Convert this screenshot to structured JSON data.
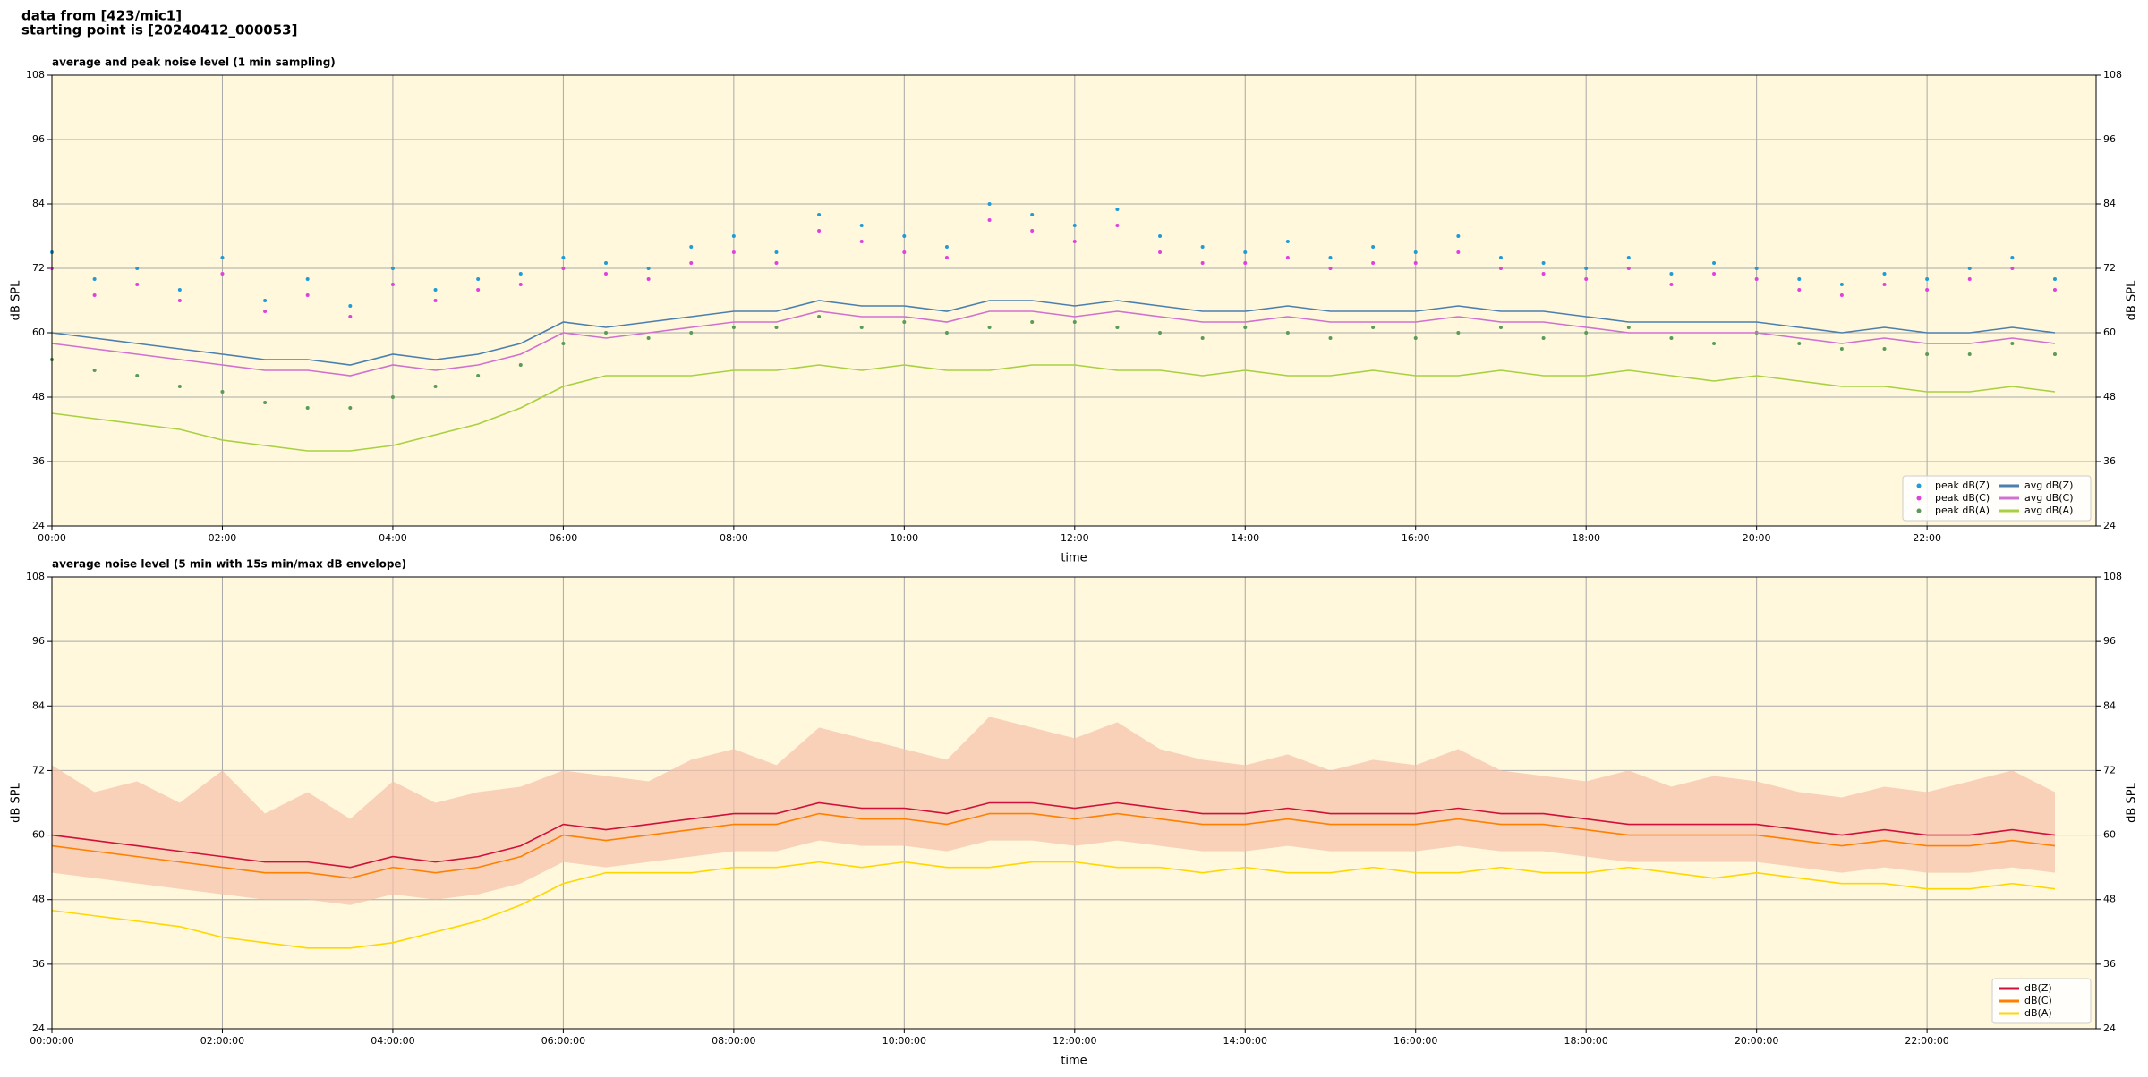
{
  "header": {
    "line1": "data from [423/mic1]",
    "line2": "starting point is [20240412_000053]"
  },
  "chart_data": [
    {
      "type": "line",
      "title": "average and peak noise level (1 min sampling)",
      "xlabel": "time",
      "ylabel": "dB SPL",
      "x": [
        "00:00",
        "00:30",
        "01:00",
        "01:30",
        "02:00",
        "02:30",
        "03:00",
        "03:30",
        "04:00",
        "04:30",
        "05:00",
        "05:30",
        "06:00",
        "06:30",
        "07:00",
        "07:30",
        "08:00",
        "08:30",
        "09:00",
        "09:30",
        "10:00",
        "10:30",
        "11:00",
        "11:30",
        "12:00",
        "12:30",
        "13:00",
        "13:30",
        "14:00",
        "14:30",
        "15:00",
        "15:30",
        "16:00",
        "16:30",
        "17:00",
        "17:30",
        "18:00",
        "18:30",
        "19:00",
        "19:30",
        "20:00",
        "20:30",
        "21:00",
        "21:30",
        "22:00",
        "22:30",
        "23:00",
        "23:30"
      ],
      "xlim": [
        "00:00",
        "23:59"
      ],
      "xticks": [
        "00:00",
        "02:00",
        "04:00",
        "06:00",
        "08:00",
        "10:00",
        "12:00",
        "14:00",
        "16:00",
        "18:00",
        "20:00",
        "22:00"
      ],
      "ylim": [
        24,
        108
      ],
      "yticks": [
        24,
        36,
        48,
        60,
        72,
        84,
        96,
        108
      ],
      "grid": true,
      "legend": "lower right",
      "legend_columns": 2,
      "background": "#fff8dc",
      "series": [
        {
          "name": "peak dB(Z)",
          "style": "scatter",
          "color": "#1f9bd8",
          "values": [
            75,
            70,
            72,
            68,
            74,
            66,
            70,
            65,
            72,
            68,
            70,
            71,
            74,
            73,
            72,
            76,
            78,
            75,
            82,
            80,
            78,
            76,
            84,
            82,
            80,
            83,
            78,
            76,
            75,
            77,
            74,
            76,
            75,
            78,
            74,
            73,
            72,
            74,
            71,
            73,
            72,
            70,
            69,
            71,
            70,
            72,
            74,
            70
          ]
        },
        {
          "name": "peak dB(C)",
          "style": "scatter",
          "color": "#e040e0",
          "values": [
            72,
            67,
            69,
            66,
            71,
            64,
            67,
            63,
            69,
            66,
            68,
            69,
            72,
            71,
            70,
            73,
            75,
            73,
            79,
            77,
            75,
            74,
            81,
            79,
            77,
            80,
            75,
            73,
            73,
            74,
            72,
            73,
            73,
            75,
            72,
            71,
            70,
            72,
            69,
            71,
            70,
            68,
            67,
            69,
            68,
            70,
            72,
            68
          ]
        },
        {
          "name": "peak dB(A)",
          "style": "scatter",
          "color": "#5a9a5a",
          "values": [
            55,
            53,
            52,
            50,
            49,
            47,
            46,
            46,
            48,
            50,
            52,
            54,
            58,
            60,
            59,
            60,
            61,
            61,
            63,
            61,
            62,
            60,
            61,
            62,
            62,
            61,
            60,
            59,
            61,
            60,
            59,
            61,
            59,
            60,
            61,
            59,
            60,
            61,
            59,
            58,
            60,
            58,
            57,
            57,
            56,
            56,
            58,
            56
          ]
        },
        {
          "name": "avg dB(Z)",
          "style": "line",
          "color": "#4a7fb0",
          "values": [
            60,
            59,
            58,
            57,
            56,
            55,
            55,
            54,
            56,
            55,
            56,
            58,
            62,
            61,
            62,
            63,
            64,
            64,
            66,
            65,
            65,
            64,
            66,
            66,
            65,
            66,
            65,
            64,
            64,
            65,
            64,
            64,
            64,
            65,
            64,
            64,
            63,
            62,
            62,
            62,
            62,
            61,
            60,
            61,
            60,
            60,
            61,
            60
          ]
        },
        {
          "name": "avg dB(C)",
          "style": "line",
          "color": "#d070d0",
          "values": [
            58,
            57,
            56,
            55,
            54,
            53,
            53,
            52,
            54,
            53,
            54,
            56,
            60,
            59,
            60,
            61,
            62,
            62,
            64,
            63,
            63,
            62,
            64,
            64,
            63,
            64,
            63,
            62,
            62,
            63,
            62,
            62,
            62,
            63,
            62,
            62,
            61,
            60,
            60,
            60,
            60,
            59,
            58,
            59,
            58,
            58,
            59,
            58
          ]
        },
        {
          "name": "avg dB(A)",
          "style": "line",
          "color": "#a8d040",
          "values": [
            45,
            44,
            43,
            42,
            40,
            39,
            38,
            38,
            39,
            41,
            43,
            46,
            50,
            52,
            52,
            52,
            53,
            53,
            54,
            53,
            54,
            53,
            53,
            54,
            54,
            53,
            53,
            52,
            53,
            52,
            52,
            53,
            52,
            52,
            53,
            52,
            52,
            53,
            52,
            51,
            52,
            51,
            50,
            50,
            49,
            49,
            50,
            49
          ]
        }
      ]
    },
    {
      "type": "line",
      "title": "average noise level (5 min with 15s min/max dB envelope)",
      "xlabel": "time",
      "ylabel": "dB SPL",
      "x": [
        "00:00:00",
        "00:30:00",
        "01:00:00",
        "01:30:00",
        "02:00:00",
        "02:30:00",
        "03:00:00",
        "03:30:00",
        "04:00:00",
        "04:30:00",
        "05:00:00",
        "05:30:00",
        "06:00:00",
        "06:30:00",
        "07:00:00",
        "07:30:00",
        "08:00:00",
        "08:30:00",
        "09:00:00",
        "09:30:00",
        "10:00:00",
        "10:30:00",
        "11:00:00",
        "11:30:00",
        "12:00:00",
        "12:30:00",
        "13:00:00",
        "13:30:00",
        "14:00:00",
        "14:30:00",
        "15:00:00",
        "15:30:00",
        "16:00:00",
        "16:30:00",
        "17:00:00",
        "17:30:00",
        "18:00:00",
        "18:30:00",
        "19:00:00",
        "19:30:00",
        "20:00:00",
        "20:30:00",
        "21:00:00",
        "21:30:00",
        "22:00:00",
        "22:30:00",
        "23:00:00",
        "23:30:00"
      ],
      "xlim": [
        "00:00:00",
        "23:59:00"
      ],
      "xticks": [
        "00:00:00",
        "02:00:00",
        "04:00:00",
        "06:00:00",
        "08:00:00",
        "10:00:00",
        "12:00:00",
        "14:00:00",
        "16:00:00",
        "18:00:00",
        "20:00:00",
        "22:00:00"
      ],
      "ylim": [
        24,
        108
      ],
      "yticks": [
        24,
        36,
        48,
        60,
        72,
        84,
        96,
        108
      ],
      "grid": true,
      "legend": "lower right",
      "legend_columns": 1,
      "background": "#fff8dc",
      "envelope": {
        "color": "#f5c0a8",
        "min": [
          53,
          52,
          51,
          50,
          49,
          48,
          48,
          47,
          49,
          48,
          49,
          51,
          55,
          54,
          55,
          56,
          57,
          57,
          59,
          58,
          58,
          57,
          59,
          59,
          58,
          59,
          58,
          57,
          57,
          58,
          57,
          57,
          57,
          58,
          57,
          57,
          56,
          55,
          55,
          55,
          55,
          54,
          53,
          54,
          53,
          53,
          54,
          53
        ],
        "max": [
          73,
          68,
          70,
          66,
          72,
          64,
          68,
          63,
          70,
          66,
          68,
          69,
          72,
          71,
          70,
          74,
          76,
          73,
          80,
          78,
          76,
          74,
          82,
          80,
          78,
          81,
          76,
          74,
          73,
          75,
          72,
          74,
          73,
          76,
          72,
          71,
          70,
          72,
          69,
          71,
          70,
          68,
          67,
          69,
          68,
          70,
          72,
          68
        ]
      },
      "series": [
        {
          "name": "dB(Z)",
          "style": "line",
          "color": "#d0103a",
          "values": [
            60,
            59,
            58,
            57,
            56,
            55,
            55,
            54,
            56,
            55,
            56,
            58,
            62,
            61,
            62,
            63,
            64,
            64,
            66,
            65,
            65,
            64,
            66,
            66,
            65,
            66,
            65,
            64,
            64,
            65,
            64,
            64,
            64,
            65,
            64,
            64,
            63,
            62,
            62,
            62,
            62,
            61,
            60,
            61,
            60,
            60,
            61,
            60
          ]
        },
        {
          "name": "dB(C)",
          "style": "line",
          "color": "#ff8000",
          "values": [
            58,
            57,
            56,
            55,
            54,
            53,
            53,
            52,
            54,
            53,
            54,
            56,
            60,
            59,
            60,
            61,
            62,
            62,
            64,
            63,
            63,
            62,
            64,
            64,
            63,
            64,
            63,
            62,
            62,
            63,
            62,
            62,
            62,
            63,
            62,
            62,
            61,
            60,
            60,
            60,
            60,
            59,
            58,
            59,
            58,
            58,
            59,
            58
          ]
        },
        {
          "name": "dB(A)",
          "style": "line",
          "color": "#ffd700",
          "values": [
            46,
            45,
            44,
            43,
            41,
            40,
            39,
            39,
            40,
            42,
            44,
            47,
            51,
            53,
            53,
            53,
            54,
            54,
            55,
            54,
            55,
            54,
            54,
            55,
            55,
            54,
            54,
            53,
            54,
            53,
            53,
            54,
            53,
            53,
            54,
            53,
            53,
            54,
            53,
            52,
            53,
            52,
            51,
            51,
            50,
            50,
            51,
            50
          ]
        }
      ]
    }
  ]
}
